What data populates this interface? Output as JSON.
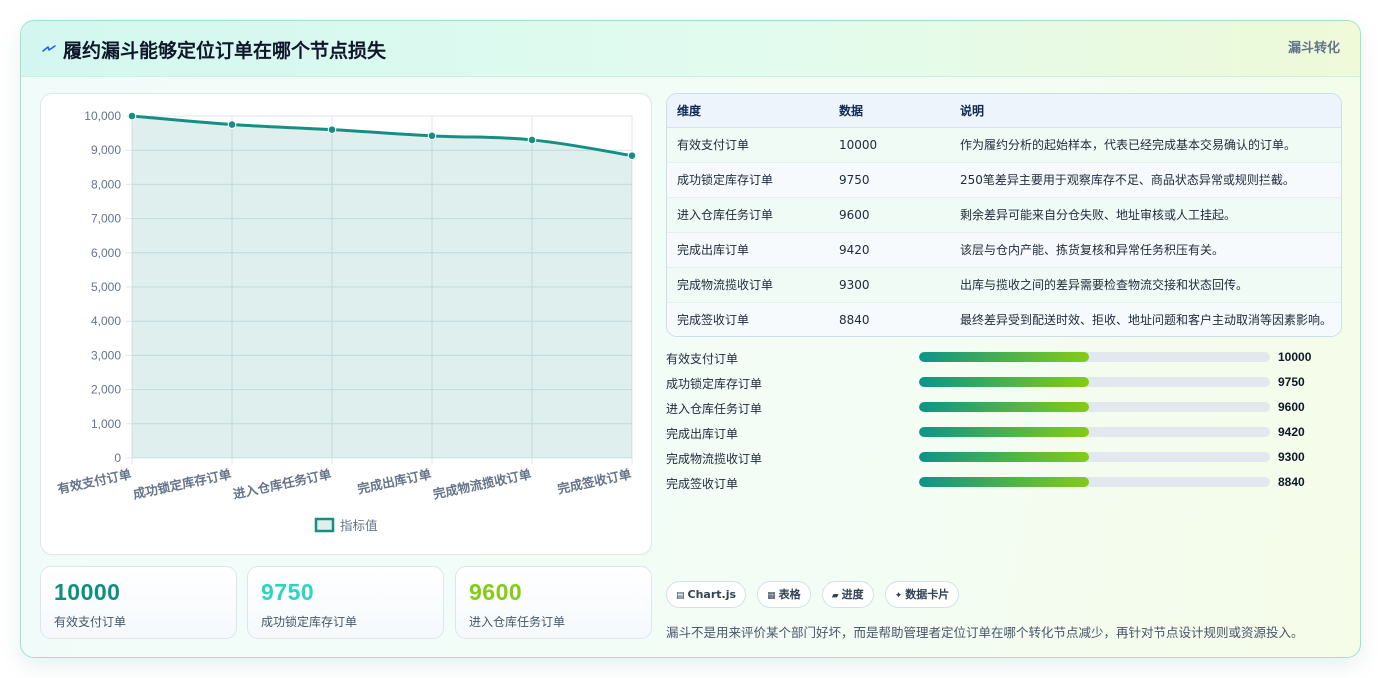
{
  "header": {
    "title": "履约漏斗能够定位订单在哪个节点损失",
    "tag": "漏斗转化",
    "icon": "lightning-icon"
  },
  "chart_data": {
    "type": "line",
    "categories": [
      "有效支付订单",
      "成功锁定库存订单",
      "进入仓库任务订单",
      "完成出库订单",
      "完成物流揽收订单",
      "完成签收订单"
    ],
    "series": [
      {
        "name": "指标值",
        "values": [
          10000,
          9750,
          9600,
          9420,
          9300,
          8840
        ],
        "color": "#168f82"
      }
    ],
    "ylim": [
      0,
      10000
    ],
    "yticks": [
      "0",
      "1,000",
      "2,000",
      "3,000",
      "4,000",
      "5,000",
      "6,000",
      "7,000",
      "8,000",
      "9,000",
      "10,000"
    ],
    "grid": true,
    "filled": true,
    "legend_position": "bottom"
  },
  "stats": [
    {
      "value": "10000",
      "label": "有效支付订单",
      "color": "#0f8f80"
    },
    {
      "value": "9750",
      "label": "成功锁定库存订单",
      "color": "#2dd4bf"
    },
    {
      "value": "9600",
      "label": "进入仓库任务订单",
      "color": "#84cc16"
    }
  ],
  "table": {
    "headers": [
      "维度",
      "数据",
      "说明"
    ],
    "rows": [
      [
        "有效支付订单",
        "10000",
        "作为履约分析的起始样本，代表已经完成基本交易确认的订单。"
      ],
      [
        "成功锁定库存订单",
        "9750",
        "250笔差异主要用于观察库存不足、商品状态异常或规则拦截。"
      ],
      [
        "进入仓库任务订单",
        "9600",
        "剩余差异可能来自分仓失败、地址审核或人工挂起。"
      ],
      [
        "完成出库订单",
        "9420",
        "该层与仓内产能、拣货复核和异常任务积压有关。"
      ],
      [
        "完成物流揽收订单",
        "9300",
        "出库与揽收之间的差异需要检查物流交接和状态回传。"
      ],
      [
        "完成签收订单",
        "8840",
        "最终差异受到配送时效、拒收、地址问题和客户主动取消等因素影响。"
      ]
    ]
  },
  "progress": [
    {
      "label": "有效支付订单",
      "value": "10000",
      "fraction": 0.485
    },
    {
      "label": "成功锁定库存订单",
      "value": "9750",
      "fraction": 0.485
    },
    {
      "label": "进入仓库任务订单",
      "value": "9600",
      "fraction": 0.485
    },
    {
      "label": "完成出库订单",
      "value": "9420",
      "fraction": 0.485
    },
    {
      "label": "完成物流揽收订单",
      "value": "9300",
      "fraction": 0.485
    },
    {
      "label": "完成签收订单",
      "value": "8840",
      "fraction": 0.485
    }
  ],
  "chips": [
    {
      "icon": "▤",
      "label": "Chart.js"
    },
    {
      "icon": "▦",
      "label": "表格"
    },
    {
      "icon": "▰",
      "label": "进度"
    },
    {
      "icon": "✦",
      "label": "数据卡片"
    }
  ],
  "footnote": "漏斗不是用来评价某个部门好坏，而是帮助管理者定位订单在哪个转化节点减少，再针对节点设计规则或资源投入。"
}
